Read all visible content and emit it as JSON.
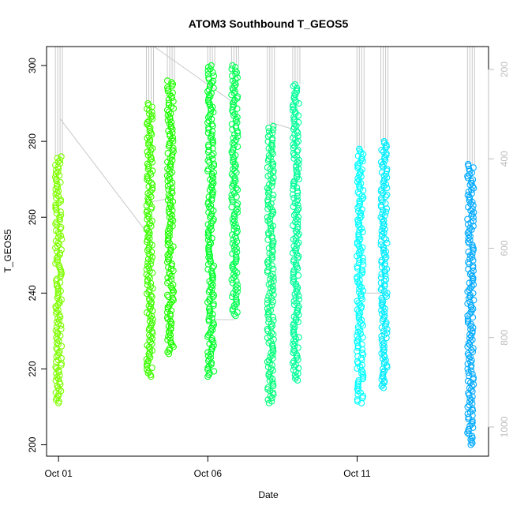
{
  "chart_data": {
    "type": "scatter",
    "title": "ATOM3 Southbound T_GEOS5",
    "xlabel": "Date",
    "ylabel": "T_GEOS5",
    "x_unit": "days since Oct 01",
    "xlim": [
      -0.4,
      14.4
    ],
    "ylim": [
      197,
      305
    ],
    "yticks": [
      200,
      220,
      240,
      260,
      280,
      300
    ],
    "xticks": [
      {
        "value": 0,
        "label": "Oct 01"
      },
      {
        "value": 5,
        "label": "Oct 06"
      },
      {
        "value": 10,
        "label": "Oct 11"
      }
    ],
    "right_axis": {
      "label": "",
      "reversed": true,
      "ticks": [
        200,
        400,
        600,
        800,
        1000
      ],
      "color": "#bdbdbd"
    },
    "grid": false,
    "marker": "open-circle",
    "series": [
      {
        "x": 0.0,
        "ymin": 211,
        "ymax": 276,
        "color": "#7fff00"
      },
      {
        "x": 3.05,
        "ymin": 218,
        "ymax": 290,
        "color": "#3fff00"
      },
      {
        "x": 3.75,
        "ymin": 224,
        "ymax": 296,
        "color": "#1fff00"
      },
      {
        "x": 5.1,
        "ymin": 218,
        "ymax": 300,
        "color": "#00ff2a"
      },
      {
        "x": 5.9,
        "ymin": 234,
        "ymax": 300,
        "color": "#00ff50"
      },
      {
        "x": 7.1,
        "ymin": 211,
        "ymax": 284,
        "color": "#00ff7a"
      },
      {
        "x": 7.95,
        "ymin": 217,
        "ymax": 295,
        "color": "#00ff99"
      },
      {
        "x": 10.1,
        "ymin": 211,
        "ymax": 278,
        "color": "#00ffff"
      },
      {
        "x": 10.9,
        "ymin": 215,
        "ymax": 280,
        "color": "#00ecff"
      },
      {
        "x": 13.8,
        "ymin": 200,
        "ymax": 274,
        "color": "#00aaff"
      }
    ]
  }
}
